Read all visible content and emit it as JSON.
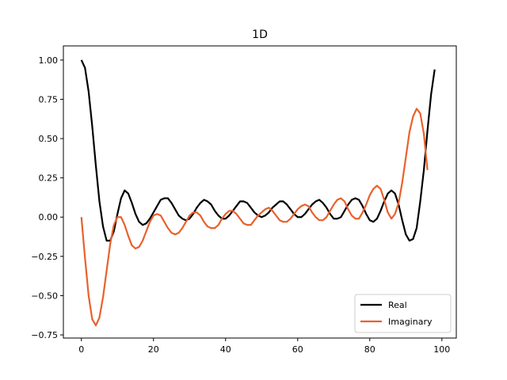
{
  "chart_data": {
    "type": "line",
    "title": "1D",
    "xlabel": "",
    "ylabel": "",
    "xlim": [
      -5,
      104
    ],
    "ylim": [
      -0.77,
      1.09
    ],
    "x_ticks": [
      0,
      20,
      40,
      60,
      80,
      100
    ],
    "y_ticks": [
      -0.75,
      -0.5,
      -0.25,
      0.0,
      0.25,
      0.5,
      0.75,
      1.0
    ],
    "x_tick_labels": [
      "0",
      "20",
      "40",
      "60",
      "80",
      "100"
    ],
    "y_tick_labels": [
      "−0.75",
      "−0.50",
      "−0.25",
      "0.00",
      "0.25",
      "0.50",
      "0.75",
      "1.00"
    ],
    "grid": false,
    "legend_position": "lower-right",
    "series": [
      {
        "name": "Real",
        "color": "#000000",
        "points": [
          [
            0,
            1.0
          ],
          [
            1,
            0.95
          ],
          [
            2,
            0.8
          ],
          [
            3,
            0.58
          ],
          [
            4,
            0.33
          ],
          [
            5,
            0.1
          ],
          [
            6,
            -0.06
          ],
          [
            7,
            -0.15
          ],
          [
            8,
            -0.15
          ],
          [
            9,
            -0.09
          ],
          [
            10,
            0.02
          ],
          [
            11,
            0.12
          ],
          [
            12,
            0.17
          ],
          [
            13,
            0.15
          ],
          [
            14,
            0.09
          ],
          [
            15,
            0.02
          ],
          [
            16,
            -0.03
          ],
          [
            17,
            -0.05
          ],
          [
            18,
            -0.04
          ],
          [
            19,
            -0.01
          ],
          [
            20,
            0.03
          ],
          [
            21,
            0.07
          ],
          [
            22,
            0.11
          ],
          [
            23,
            0.12
          ],
          [
            24,
            0.12
          ],
          [
            25,
            0.09
          ],
          [
            26,
            0.05
          ],
          [
            27,
            0.01
          ],
          [
            28,
            -0.01
          ],
          [
            29,
            -0.02
          ],
          [
            30,
            -0.01
          ],
          [
            31,
            0.02
          ],
          [
            32,
            0.06
          ],
          [
            33,
            0.09
          ],
          [
            34,
            0.11
          ],
          [
            35,
            0.1
          ],
          [
            36,
            0.08
          ],
          [
            37,
            0.04
          ],
          [
            38,
            0.01
          ],
          [
            39,
            -0.01
          ],
          [
            40,
            -0.01
          ],
          [
            41,
            0.01
          ],
          [
            42,
            0.04
          ],
          [
            43,
            0.07
          ],
          [
            44,
            0.1
          ],
          [
            45,
            0.1
          ],
          [
            46,
            0.09
          ],
          [
            47,
            0.06
          ],
          [
            48,
            0.03
          ],
          [
            49,
            0.01
          ],
          [
            50,
            0.0
          ],
          [
            51,
            0.01
          ],
          [
            52,
            0.03
          ],
          [
            53,
            0.06
          ],
          [
            54,
            0.08
          ],
          [
            55,
            0.1
          ],
          [
            56,
            0.1
          ],
          [
            57,
            0.08
          ],
          [
            58,
            0.05
          ],
          [
            59,
            0.02
          ],
          [
            60,
            0.0
          ],
          [
            61,
            0.0
          ],
          [
            62,
            0.02
          ],
          [
            63,
            0.05
          ],
          [
            64,
            0.08
          ],
          [
            65,
            0.1
          ],
          [
            66,
            0.11
          ],
          [
            67,
            0.09
          ],
          [
            68,
            0.06
          ],
          [
            69,
            0.02
          ],
          [
            70,
            -0.01
          ],
          [
            71,
            -0.01
          ],
          [
            72,
            0.0
          ],
          [
            73,
            0.04
          ],
          [
            74,
            0.08
          ],
          [
            75,
            0.11
          ],
          [
            76,
            0.12
          ],
          [
            77,
            0.11
          ],
          [
            78,
            0.07
          ],
          [
            79,
            0.02
          ],
          [
            80,
            -0.02
          ],
          [
            81,
            -0.03
          ],
          [
            82,
            -0.01
          ],
          [
            83,
            0.04
          ],
          [
            84,
            0.1
          ],
          [
            85,
            0.15
          ],
          [
            86,
            0.17
          ],
          [
            87,
            0.15
          ],
          [
            88,
            0.08
          ],
          [
            89,
            -0.02
          ],
          [
            90,
            -0.11
          ],
          [
            91,
            -0.15
          ],
          [
            92,
            -0.14
          ],
          [
            93,
            -0.07
          ],
          [
            94,
            0.1
          ],
          [
            95,
            0.3
          ],
          [
            96,
            0.55
          ],
          [
            97,
            0.78
          ],
          [
            98,
            0.94
          ]
        ]
      },
      {
        "name": "Imaginary",
        "color": "#e8612c",
        "points": [
          [
            0,
            0.0
          ],
          [
            1,
            -0.26
          ],
          [
            2,
            -0.5
          ],
          [
            3,
            -0.65
          ],
          [
            4,
            -0.69
          ],
          [
            5,
            -0.64
          ],
          [
            6,
            -0.51
          ],
          [
            7,
            -0.34
          ],
          [
            8,
            -0.17
          ],
          [
            9,
            -0.05
          ],
          [
            10,
            0.0
          ],
          [
            11,
            0.0
          ],
          [
            12,
            -0.05
          ],
          [
            13,
            -0.12
          ],
          [
            14,
            -0.18
          ],
          [
            15,
            -0.2
          ],
          [
            16,
            -0.19
          ],
          [
            17,
            -0.15
          ],
          [
            18,
            -0.09
          ],
          [
            19,
            -0.03
          ],
          [
            20,
            0.01
          ],
          [
            21,
            0.02
          ],
          [
            22,
            0.01
          ],
          [
            23,
            -0.03
          ],
          [
            24,
            -0.07
          ],
          [
            25,
            -0.1
          ],
          [
            26,
            -0.11
          ],
          [
            27,
            -0.1
          ],
          [
            28,
            -0.07
          ],
          [
            29,
            -0.03
          ],
          [
            30,
            0.01
          ],
          [
            31,
            0.03
          ],
          [
            32,
            0.03
          ],
          [
            33,
            0.01
          ],
          [
            34,
            -0.03
          ],
          [
            35,
            -0.06
          ],
          [
            36,
            -0.07
          ],
          [
            37,
            -0.07
          ],
          [
            38,
            -0.05
          ],
          [
            39,
            -0.01
          ],
          [
            40,
            0.02
          ],
          [
            41,
            0.04
          ],
          [
            42,
            0.04
          ],
          [
            43,
            0.02
          ],
          [
            44,
            -0.01
          ],
          [
            45,
            -0.04
          ],
          [
            46,
            -0.05
          ],
          [
            47,
            -0.05
          ],
          [
            48,
            -0.02
          ],
          [
            49,
            0.01
          ],
          [
            50,
            0.03
          ],
          [
            51,
            0.05
          ],
          [
            52,
            0.06
          ],
          [
            53,
            0.04
          ],
          [
            54,
            0.01
          ],
          [
            55,
            -0.02
          ],
          [
            56,
            -0.03
          ],
          [
            57,
            -0.03
          ],
          [
            58,
            -0.01
          ],
          [
            59,
            0.02
          ],
          [
            60,
            0.05
          ],
          [
            61,
            0.07
          ],
          [
            62,
            0.08
          ],
          [
            63,
            0.07
          ],
          [
            64,
            0.03
          ],
          [
            65,
            0.0
          ],
          [
            66,
            -0.02
          ],
          [
            67,
            -0.02
          ],
          [
            68,
            0.0
          ],
          [
            69,
            0.04
          ],
          [
            70,
            0.08
          ],
          [
            71,
            0.11
          ],
          [
            72,
            0.12
          ],
          [
            73,
            0.1
          ],
          [
            74,
            0.05
          ],
          [
            75,
            0.01
          ],
          [
            76,
            -0.01
          ],
          [
            77,
            -0.01
          ],
          [
            78,
            0.03
          ],
          [
            79,
            0.08
          ],
          [
            80,
            0.14
          ],
          [
            81,
            0.18
          ],
          [
            82,
            0.2
          ],
          [
            83,
            0.18
          ],
          [
            84,
            0.11
          ],
          [
            85,
            0.03
          ],
          [
            86,
            -0.01
          ],
          [
            87,
            0.02
          ],
          [
            88,
            0.09
          ],
          [
            89,
            0.22
          ],
          [
            90,
            0.38
          ],
          [
            91,
            0.54
          ],
          [
            92,
            0.64
          ],
          [
            93,
            0.69
          ],
          [
            94,
            0.66
          ],
          [
            95,
            0.53
          ],
          [
            96,
            0.3
          ]
        ]
      }
    ]
  }
}
